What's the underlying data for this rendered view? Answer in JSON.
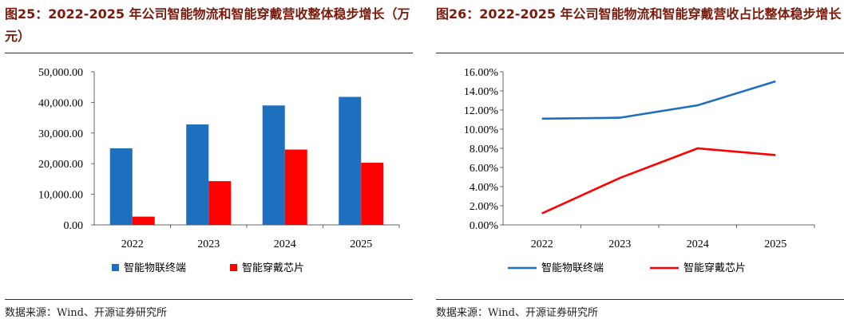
{
  "left": {
    "title": "图25：2022-2025 年公司智能物流和智能穿戴营收整体稳步增长（万元）",
    "source": "数据来源：Wind、开源证券研究所"
  },
  "right": {
    "title": "图26：2022-2025 年公司智能物流和智能穿戴营收占比整体稳步增长",
    "source": "数据来源：Wind、开源证券研究所"
  },
  "colors": {
    "blue": "#1f6fbf",
    "red": "#ff0000",
    "title": "#7a1a0c"
  },
  "chart_data": [
    {
      "type": "bar",
      "categories": [
        "2022",
        "2023",
        "2024",
        "2025"
      ],
      "series": [
        {
          "name": "智能物联终端",
          "values": [
            25000,
            32800,
            39000,
            41800
          ]
        },
        {
          "name": "智能穿戴芯片",
          "values": [
            2700,
            14300,
            24600,
            20300
          ]
        }
      ],
      "ylim": [
        0,
        50000
      ],
      "yticks": [
        0,
        10000,
        20000,
        30000,
        40000,
        50000
      ],
      "ytick_labels": [
        "0.00",
        "10,000.00",
        "20,000.00",
        "30,000.00",
        "40,000.00",
        "50,000.00"
      ],
      "legend": "bottom",
      "grid": false
    },
    {
      "type": "line",
      "categories": [
        "2022",
        "2023",
        "2024",
        "2025"
      ],
      "series": [
        {
          "name": "智能物联终端",
          "values": [
            11.1,
            11.2,
            12.5,
            15.0
          ]
        },
        {
          "name": "智能穿戴芯片",
          "values": [
            1.2,
            4.9,
            8.0,
            7.3
          ]
        }
      ],
      "ylim": [
        0,
        16
      ],
      "yticks": [
        0,
        2,
        4,
        6,
        8,
        10,
        12,
        14,
        16
      ],
      "ytick_labels": [
        "0.00%",
        "2.00%",
        "4.00%",
        "6.00%",
        "8.00%",
        "10.00%",
        "12.00%",
        "14.00%",
        "16.00%"
      ],
      "legend": "bottom",
      "grid": false
    }
  ]
}
